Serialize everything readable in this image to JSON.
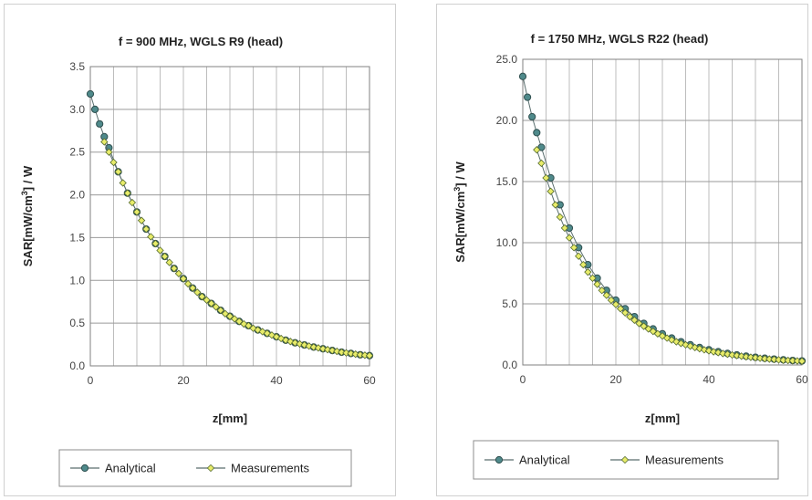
{
  "chart_data": [
    {
      "type": "scatter",
      "title": "f = 900 MHz, WGLS R9 (head)",
      "xlabel": "z[mm]",
      "ylabel_main": "SAR[mW/cm",
      "ylabel_sup": "3",
      "ylabel_tail": "] / W",
      "xlim": [
        0,
        60
      ],
      "ylim": [
        0,
        3.5
      ],
      "x_ticks": [
        0,
        20,
        40,
        60
      ],
      "y_ticks": [
        "0.0",
        "0.5",
        "1.0",
        "1.5",
        "2.0",
        "2.5",
        "3.0",
        "3.5"
      ],
      "x_grid_step": 5,
      "grid": true,
      "legend_position": "bottom",
      "series": [
        {
          "name": "Analytical",
          "color": "#4f8a8b",
          "x": [
            0,
            1,
            2,
            3,
            4,
            6,
            8,
            10,
            12,
            14,
            16,
            18,
            20,
            22,
            24,
            26,
            28,
            30,
            32,
            34,
            36,
            38,
            40,
            42,
            44,
            46,
            48,
            50,
            52,
            54,
            56,
            58,
            60
          ],
          "y": [
            3.18,
            3.0,
            2.83,
            2.68,
            2.55,
            2.27,
            2.02,
            1.8,
            1.6,
            1.43,
            1.28,
            1.14,
            1.02,
            0.91,
            0.81,
            0.73,
            0.65,
            0.58,
            0.52,
            0.47,
            0.42,
            0.38,
            0.34,
            0.3,
            0.27,
            0.245,
            0.22,
            0.2,
            0.18,
            0.16,
            0.145,
            0.13,
            0.12
          ]
        },
        {
          "name": "Measurements",
          "color": "#e8ec6a",
          "x": [
            3,
            4,
            5,
            6,
            7,
            8,
            9,
            10,
            11,
            12,
            13,
            14,
            15,
            16,
            17,
            18,
            19,
            20,
            21,
            22,
            23,
            24,
            25,
            26,
            27,
            28,
            29,
            30,
            31,
            32,
            33,
            34,
            35,
            36,
            37,
            38,
            39,
            40,
            41,
            42,
            43,
            44,
            45,
            46,
            47,
            48,
            49,
            50,
            51,
            52,
            53,
            54,
            55,
            56,
            57,
            58,
            59,
            60
          ],
          "y": [
            2.62,
            2.5,
            2.38,
            2.27,
            2.14,
            2.02,
            1.91,
            1.8,
            1.7,
            1.6,
            1.51,
            1.43,
            1.35,
            1.28,
            1.21,
            1.14,
            1.08,
            1.02,
            0.96,
            0.91,
            0.86,
            0.81,
            0.77,
            0.73,
            0.69,
            0.65,
            0.61,
            0.58,
            0.55,
            0.52,
            0.49,
            0.47,
            0.44,
            0.42,
            0.4,
            0.38,
            0.36,
            0.34,
            0.32,
            0.3,
            0.285,
            0.27,
            0.257,
            0.245,
            0.232,
            0.22,
            0.21,
            0.2,
            0.19,
            0.18,
            0.17,
            0.16,
            0.152,
            0.145,
            0.137,
            0.13,
            0.125,
            0.12
          ]
        }
      ]
    },
    {
      "type": "scatter",
      "title": "f = 1750 MHz, WGLS R22 (head)",
      "xlabel": "z[mm]",
      "ylabel_main": "SAR[mW/cm",
      "ylabel_sup": "3",
      "ylabel_tail": "] / W",
      "xlim": [
        0,
        60
      ],
      "ylim": [
        0,
        25
      ],
      "x_ticks": [
        0,
        20,
        40,
        60
      ],
      "y_ticks": [
        "0.0",
        "5.0",
        "10.0",
        "15.0",
        "20.0",
        "25.0"
      ],
      "x_grid_step": 5,
      "grid": true,
      "legend_position": "bottom",
      "series": [
        {
          "name": "Analytical",
          "color": "#4f8a8b",
          "x": [
            0,
            1,
            2,
            3,
            4,
            6,
            8,
            10,
            12,
            14,
            16,
            18,
            20,
            22,
            24,
            26,
            28,
            30,
            32,
            34,
            36,
            38,
            40,
            42,
            44,
            46,
            48,
            50,
            52,
            54,
            56,
            58,
            60
          ],
          "y": [
            23.6,
            21.9,
            20.3,
            19.0,
            17.8,
            15.3,
            13.1,
            11.2,
            9.6,
            8.2,
            7.1,
            6.1,
            5.3,
            4.6,
            3.95,
            3.4,
            2.95,
            2.55,
            2.2,
            1.9,
            1.65,
            1.43,
            1.24,
            1.08,
            0.94,
            0.82,
            0.72,
            0.63,
            0.55,
            0.48,
            0.42,
            0.37,
            0.33
          ]
        },
        {
          "name": "Measurements",
          "color": "#e8ec6a",
          "x": [
            3,
            4,
            5,
            6,
            7,
            8,
            9,
            10,
            11,
            12,
            13,
            14,
            15,
            16,
            17,
            18,
            19,
            20,
            21,
            22,
            23,
            24,
            25,
            26,
            27,
            28,
            29,
            30,
            31,
            32,
            33,
            34,
            35,
            36,
            37,
            38,
            39,
            40,
            41,
            42,
            43,
            44,
            45,
            46,
            47,
            48,
            49,
            50,
            51,
            52,
            53,
            54,
            55,
            56,
            57,
            58,
            59,
            60
          ],
          "y": [
            17.6,
            16.5,
            15.3,
            14.2,
            13.1,
            12.1,
            11.2,
            10.4,
            9.6,
            8.9,
            8.2,
            7.6,
            7.1,
            6.6,
            6.1,
            5.7,
            5.3,
            4.95,
            4.6,
            4.27,
            3.95,
            3.67,
            3.4,
            3.17,
            2.95,
            2.75,
            2.55,
            2.37,
            2.2,
            2.05,
            1.9,
            1.77,
            1.65,
            1.54,
            1.43,
            1.33,
            1.24,
            1.16,
            1.08,
            1.01,
            0.94,
            0.88,
            0.82,
            0.77,
            0.72,
            0.67,
            0.63,
            0.59,
            0.55,
            0.51,
            0.48,
            0.45,
            0.42,
            0.39,
            0.37,
            0.35,
            0.33,
            0.31
          ]
        }
      ]
    }
  ]
}
